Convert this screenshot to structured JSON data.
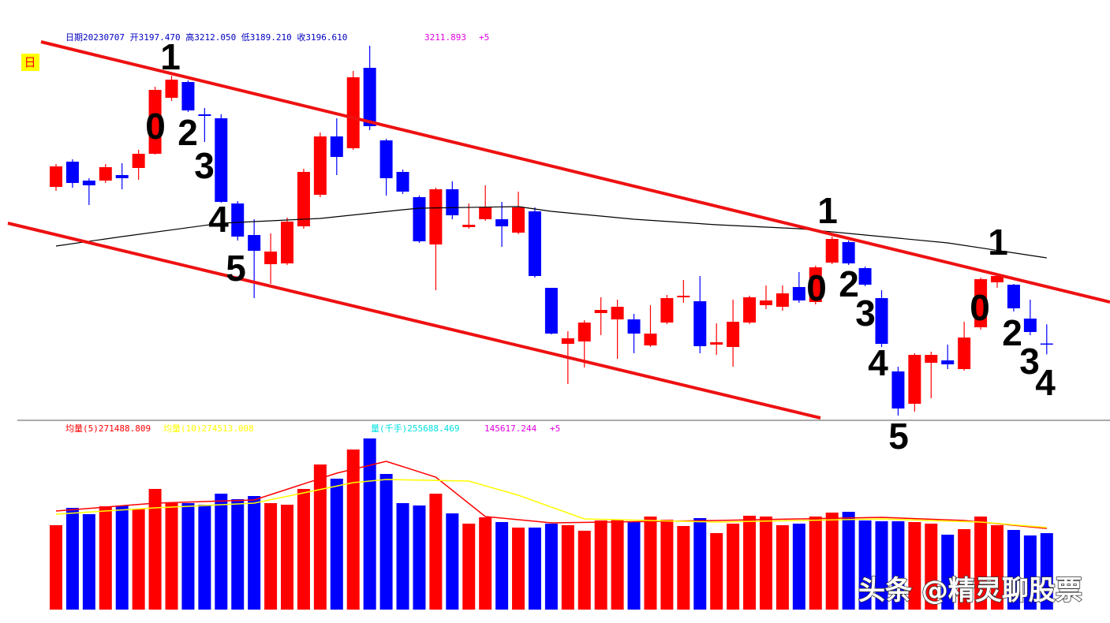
{
  "chart_data": {
    "type": "candlestick",
    "period": "日",
    "header": [
      {
        "text": "日期20230707 开3197.470 高3212.050 低3189.210 收3196.610",
        "color": "#0000c0"
      },
      {
        "text": "3211.893",
        "color": "#e000e0"
      },
      {
        "text": "+5",
        "color": "#e000e0"
      }
    ],
    "up_color": "#ff0000",
    "down_color": "#0000ff",
    "ylim": [
      3140.8,
      3434.8
    ],
    "open": [
      3316.6,
      3335.8,
      3321.4,
      3321.4,
      3325.6,
      3331.0,
      3341.8,
      3384.4,
      3396.4,
      3371.8,
      3368.8,
      3304.0,
      3280.0,
      3257.8,
      3258.4,
      3286.6,
      3310.6,
      3355.0,
      3346.0,
      3407.2,
      3352.0,
      3328.0,
      3308.8,
      3272.8,
      3314.8,
      3286.0,
      3292.0,
      3292.0,
      3281.8,
      3298.0,
      3239.8,
      3197.2,
      3199.0,
      3220.6,
      3215.8,
      3215.8,
      3196.0,
      3213.4,
      3232.6,
      3229.6,
      3196.6,
      3194.8,
      3213.4,
      3226.6,
      3225.4,
      3240.4,
      3229.0,
      3259.0,
      3274.6,
      3254.8,
      3232.0,
      3176.2,
      3151.6,
      3182.8,
      3184.6,
      3178.0,
      3209.8,
      3244.0,
      3242.2,
      3216.4,
      3197.47
    ],
    "high": [
      3334.0,
      3337.6,
      3323.2,
      3334.0,
      3334.6,
      3344.8,
      3392.8,
      3401.2,
      3397.6,
      3376.6,
      3371.8,
      3305.8,
      3292.0,
      3281.2,
      3293.2,
      3330.4,
      3358.0,
      3368.8,
      3404.8,
      3424.0,
      3353.2,
      3329.8,
      3310.0,
      3316.0,
      3320.8,
      3304.0,
      3317.8,
      3305.2,
      3313.0,
      3301.0,
      3239.8,
      3206.8,
      3215.2,
      3232.6,
      3230.8,
      3220.0,
      3226.6,
      3234.4,
      3245.8,
      3248.8,
      3212.8,
      3230.8,
      3233.8,
      3241.6,
      3241.6,
      3251.8,
      3256.6,
      3278.8,
      3275.8,
      3256.0,
      3238.0,
      3179.8,
      3190.0,
      3191.2,
      3196.6,
      3214.0,
      3247.6,
      3250.0,
      3242.8,
      3230.8,
      3212.05
    ],
    "low": [
      3313.6,
      3316.0,
      3302.8,
      3319.6,
      3314.8,
      3322.0,
      3341.2,
      3382.0,
      3373.6,
      3350.8,
      3304.6,
      3275.8,
      3232.0,
      3242.8,
      3257.2,
      3284.8,
      3308.8,
      3325.6,
      3344.8,
      3359.8,
      3310.0,
      3311.2,
      3274.0,
      3238.0,
      3292.0,
      3284.8,
      3290.8,
      3271.0,
      3280.6,
      3247.6,
      3204.4,
      3166.6,
      3179.2,
      3203.8,
      3185.8,
      3190.0,
      3194.8,
      3212.2,
      3228.4,
      3190.0,
      3188.8,
      3179.8,
      3212.2,
      3223.6,
      3222.4,
      3228.4,
      3227.2,
      3257.8,
      3257.2,
      3241.0,
      3194.8,
      3142.6,
      3145.6,
      3155.8,
      3178.0,
      3176.8,
      3208.0,
      3239.8,
      3221.8,
      3203.8,
      3189.21
    ],
    "close": [
      3332.2,
      3319.6,
      3317.8,
      3331.6,
      3323.2,
      3341.8,
      3390.4,
      3398.2,
      3374.8,
      3370.6,
      3305.2,
      3278.8,
      3268.0,
      3267.4,
      3290.2,
      3328.0,
      3355.0,
      3339.4,
      3400.0,
      3362.8,
      3323.2,
      3313.0,
      3275.2,
      3314.8,
      3295.0,
      3287.8,
      3301.0,
      3286.6,
      3301.0,
      3248.8,
      3205.0,
      3201.4,
      3213.4,
      3223.0,
      3225.4,
      3205.0,
      3205.0,
      3232.0,
      3233.8,
      3195.4,
      3198.4,
      3214.0,
      3232.6,
      3230.2,
      3235.6,
      3230.2,
      3255.4,
      3277.0,
      3258.4,
      3242.2,
      3197.2,
      3148.0,
      3188.8,
      3188.8,
      3181.6,
      3202.0,
      3246.4,
      3248.8,
      3224.2,
      3206.2,
      3196.61
    ],
    "ma": {
      "color": "#000000",
      "x": [
        0,
        4,
        10,
        16,
        21,
        22,
        28,
        30,
        35,
        40,
        45,
        49,
        54,
        60
      ],
      "values": [
        3271.6,
        3278.8,
        3289.0,
        3292.6,
        3299.2,
        3300.4,
        3301.6,
        3298.0,
        3292.0,
        3287.8,
        3284.8,
        3280.0,
        3274.0,
        3262.6
      ]
    },
    "volume": {
      "header": [
        {
          "text": "均量(5)271488.809",
          "color": "#ff0000"
        },
        {
          "text": "均量(10)274513.008",
          "color": "#ffff00"
        },
        {
          "text": "量(千手)255688.469",
          "color": "#00e0e0"
        },
        {
          "text": "145617.244",
          "color": "#e000e0"
        },
        {
          "text": "+5",
          "color": "#e000e0"
        }
      ],
      "ylim": [
        0,
        575000
      ],
      "values": [
        282223,
        340250,
        319150,
        345526,
        348163,
        337613,
        403553,
        356076,
        356076,
        350801,
        387727,
        369264,
        379814,
        356076,
        350801,
        403553,
        485318,
        437842,
        535433,
        572359,
        453667,
        356076,
        348163,
        387727,
        321787,
        287498,
        308600,
        292774,
        274310,
        274310,
        287498,
        282223,
        263760,
        298049,
        300686,
        292774,
        311237,
        300686,
        279586,
        305962,
        255847,
        287498,
        313874,
        311237,
        282223,
        287498,
        311237,
        324425,
        327062,
        298049,
        295411,
        295411,
        292774,
        287498,
        250572,
        269035,
        311237,
        282223,
        266398,
        247934,
        255688.469
      ],
      "ma": [
        {
          "color": "#ff0000",
          "x": [
            0,
            6,
            12,
            17,
            20,
            23,
            26,
            30,
            40,
            50,
            55,
            60
          ],
          "values": [
            329700,
            356076,
            366626,
            456305,
            495869,
            443117,
            311237,
            290136,
            298049,
            308599,
            298049,
            271488.809
          ]
        },
        {
          "color": "#ffff00",
          "x": [
            0,
            6,
            12,
            18,
            20,
            25,
            28,
            32,
            40,
            50,
            56,
            60
          ],
          "values": [
            319150,
            340250,
            356076,
            424654,
            435204,
            429929,
            382452,
            303324,
            292774,
            303324,
            292774,
            274513.008
          ]
        }
      ]
    },
    "annotations": [
      "1",
      "0",
      "2",
      "3",
      "4",
      "5",
      "1",
      "0",
      "2",
      "3",
      "4",
      "5",
      "1",
      "0",
      "2",
      "3",
      "4"
    ],
    "watermark": "头条 @精灵聊股票"
  }
}
